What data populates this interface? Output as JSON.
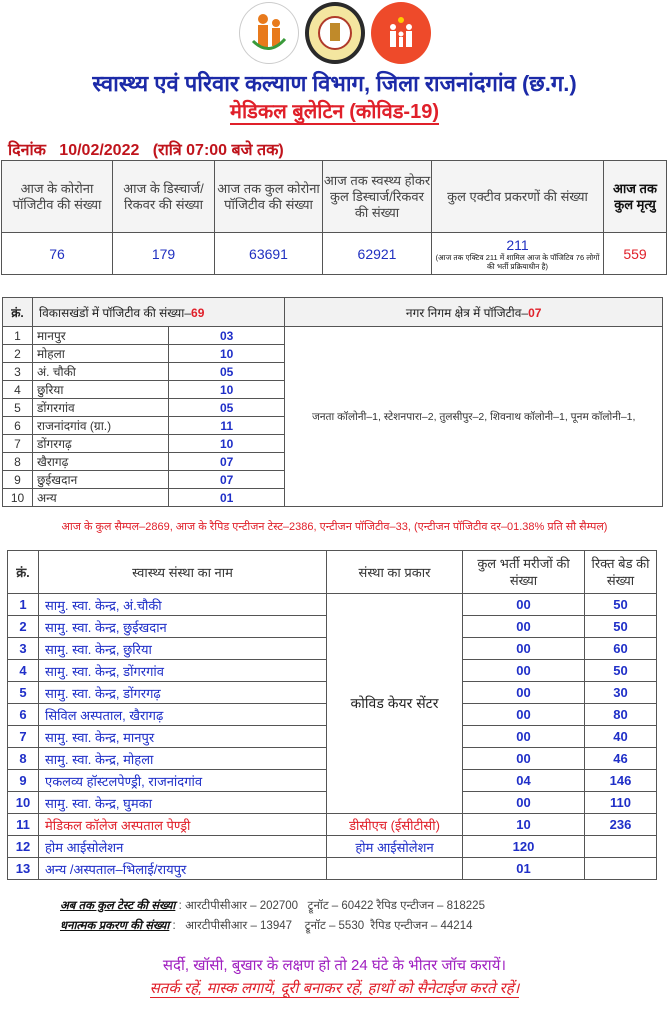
{
  "logos": [
    "ngo-family-logo",
    "chhattisgarh-state-emblem",
    "national-health-mission-logo"
  ],
  "header": {
    "title": "स्वास्थ्य एवं परिवार कल्याण विभाग, जिला राजनांदगांव (छ.ग.)",
    "subtitle": "मेडिकल बुलेटिन (कोविड-19)",
    "date_label": "दिनांक",
    "date": "10/02/2022",
    "time": "(रात्रि 07:00 बजे तक)"
  },
  "summary": {
    "headers": [
      "आज के कोरोना पॉजिटीव की संख्या",
      "आज के डिस्चार्ज/रिकवर की संख्या",
      "आज तक कुल कोरोना पॉजिटीव की संख्या",
      "आज तक स्वस्थ्य होकर कुल डिस्चार्ज/रिकवर की संख्या",
      "कुल एक्टीव प्रकरणों की संख्या",
      "आज तक कुल मृत्यु"
    ],
    "values": [
      "76",
      "179",
      "63691",
      "62921",
      "211",
      "559"
    ],
    "active_note": "(आज तक एक्टिव 211 में शामिल आज के पॉजिटिव 76 लोगों की भर्ती प्रक्रियाधीन है)"
  },
  "blocks": {
    "sn_header": "क्रं.",
    "header": "विकासखंडों में पॉजिटीव की संख्या–",
    "total": "69",
    "urban_header": "नगर निगम क्षेत्र में पॉजिटीव–",
    "urban_total": "07",
    "urban_detail": "जनता कॉलोनी–1, स्टेशनपारा–2, तुलसीपुर–2, शिवनाथ कॉलोनी–1, पूनम कॉलोनी–1,",
    "rows": [
      [
        "1",
        "मानपुर",
        "03"
      ],
      [
        "2",
        "मोहला",
        "10"
      ],
      [
        "3",
        "अं. चौकी",
        "05"
      ],
      [
        "4",
        "छुरिया",
        "10"
      ],
      [
        "5",
        "डोंगरगांव",
        "05"
      ],
      [
        "6",
        "राजनांदगांव (ग्रा.)",
        "11"
      ],
      [
        "7",
        "डोंगरगढ़",
        "10"
      ],
      [
        "8",
        "खैरागढ़",
        "07"
      ],
      [
        "9",
        "छुईखदान",
        "07"
      ],
      [
        "10",
        "अन्य",
        "01"
      ]
    ]
  },
  "samples": "आज के कुल सैम्पल–2869, आज के रैपिड एन्टीजन टेस्ट–2386, एन्टीजन पॉजिटीव–33, (एन्टीजन पॉजिटीव दर–01.38% प्रति सौ सैम्पल)",
  "facilities": {
    "headers": [
      "क्रं.",
      "स्वास्थ्य संस्था का नाम",
      "संस्था का प्रकार",
      "कुल भर्ती मरीजों की संख्या",
      "रिक्त बेड की संख्या"
    ],
    "ccc_type": "कोविड केयर सेंटर",
    "rows": [
      [
        "1",
        "सामु. स्वा. केन्द्र, अं.चौकी",
        "00",
        "50"
      ],
      [
        "2",
        "सामु. स्वा. केन्द्र, छुईखदान",
        "00",
        "50"
      ],
      [
        "3",
        "सामु. स्वा. केन्द्र, छुरिया",
        "00",
        "60"
      ],
      [
        "4",
        "सामु. स्वा. केन्द्र, डोंगरगांव",
        "00",
        "50"
      ],
      [
        "5",
        "सामु. स्वा. केन्द्र, डोंगरगढ़",
        "00",
        "30"
      ],
      [
        "6",
        "सिविल अस्पताल, खैरागढ़",
        "00",
        "80"
      ],
      [
        "7",
        "सामु. स्वा. केन्द्र, मानपुर",
        "00",
        "40"
      ],
      [
        "8",
        "सामु. स्वा. केन्द्र, मोहला",
        "00",
        "46"
      ],
      [
        "9",
        "एकलव्य हॉस्टलपेण्ड्री, राजनांदगांव",
        "04",
        "146"
      ],
      [
        "10",
        "सामु. स्वा. केन्द्र, घुमका",
        "00",
        "110"
      ]
    ],
    "row11": [
      "11",
      "मेडिकल कॉलेज अस्पताल पेण्ड्री",
      "डीसीएच (ईसीटीसी)",
      "10",
      "236"
    ],
    "row12": [
      "12",
      "होम आईसोलेशन",
      "होम आईसोलेशन",
      "120",
      ""
    ],
    "row13": [
      "13",
      "अन्य /अस्पताल–भिलाई/रायपुर",
      "",
      "01",
      ""
    ]
  },
  "tests": {
    "total_label": "अब तक कुल टेस्ट की संख्या",
    "total_values": "आरटीपीसीआर – 202700   ट्रूनॉट – 60422 रैपिड एन्टीजन – 818225",
    "positive_label": "धनात्मक प्रकरण की संख्या",
    "positive_values": "आरटीपीसीआर – 13947    ट्रूनॉट – 5530  रैपिड एन्टीजन – 44214"
  },
  "slogans": [
    "सर्दी, खॉसी, बुखार के लक्षण हो तो 24 घंटे के भीतर जॉच करायें।",
    "सतर्क रहें, मास्क लगायें, दूरी बनाकर रहें, हाथों को सैनेटाईज करते रहें।"
  ]
}
